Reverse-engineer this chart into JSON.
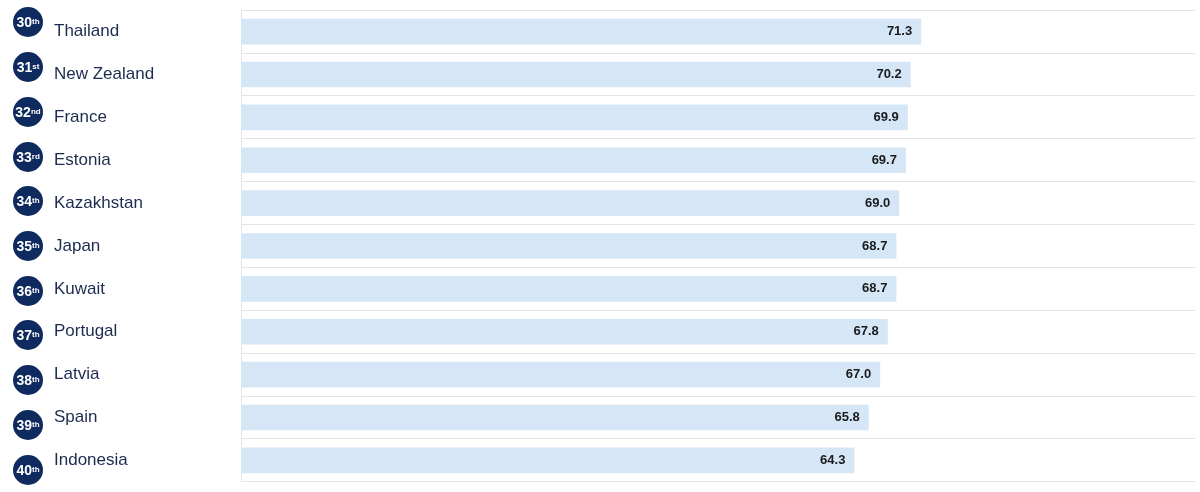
{
  "chart_data": {
    "type": "bar",
    "orientation": "horizontal",
    "categories": [
      "Thailand",
      "New Zealand",
      "France",
      "Estonia",
      "Kazakhstan",
      "Japan",
      "Kuwait",
      "Portugal",
      "Latvia",
      "Spain",
      "Indonesia"
    ],
    "values": [
      71.3,
      70.2,
      69.9,
      69.7,
      69.0,
      68.7,
      68.7,
      67.8,
      67.0,
      65.8,
      64.3
    ],
    "value_labels": [
      "71.3",
      "70.2",
      "69.9",
      "69.7",
      "69.0",
      "68.7",
      "68.7",
      "67.8",
      "67.0",
      "65.8",
      "64.3"
    ],
    "color": "#d5e7f7",
    "xlim": [
      0,
      100
    ],
    "grid": "y",
    "legend": false,
    "annotations": [
      "30$^{th}$",
      "31$^{st}$",
      "32$^{nd}$",
      "33$^{rd}$",
      "34$^{th}$",
      "35$^{th}$",
      "36$^{th}$",
      "37$^{th}$",
      "38$^{th}$",
      "39$^{th}$",
      "40$^{th}$"
    ]
  }
}
